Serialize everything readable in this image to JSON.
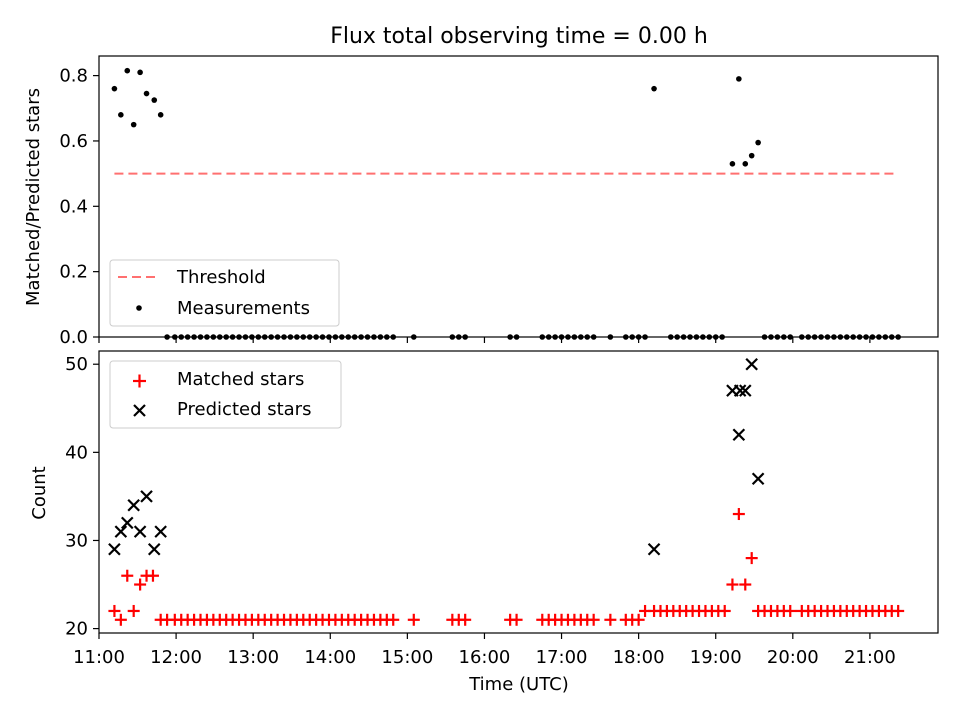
{
  "chart_data": [
    {
      "type": "scatter",
      "title": "Flux total observing time = 0.00 h",
      "xlabel": "",
      "ylabel": "Matched/Predicted stars",
      "xlim": [
        "11:00",
        "21:53"
      ],
      "ylim": [
        0,
        0.86
      ],
      "yticks": [
        "0.0",
        "0.2",
        "0.4",
        "0.6",
        "0.8"
      ],
      "grid": false,
      "legend_position": "lower-left",
      "threshold": {
        "name": "Threshold",
        "value": 0.5,
        "x_start": "11:12",
        "x_end": "21:22",
        "color": "#ff7070"
      },
      "series": [
        {
          "name": "Measurements",
          "color": "#000000",
          "points": [
            [
              "11:12",
              0.76
            ],
            [
              "11:17",
              0.68
            ],
            [
              "11:22",
              0.815
            ],
            [
              "11:27",
              0.65
            ],
            [
              "11:32",
              0.81
            ],
            [
              "11:37",
              0.745
            ],
            [
              "11:43",
              0.725
            ],
            [
              "11:48",
              0.68
            ],
            [
              "19:13",
              0.53
            ],
            [
              "19:18",
              0.79
            ],
            [
              "19:23",
              0.53
            ],
            [
              "19:28",
              0.555
            ],
            [
              "19:33",
              0.595
            ],
            [
              "18:12",
              0.76
            ],
            [
              "11:53",
              0
            ],
            [
              "11:59",
              0
            ],
            [
              "12:04",
              0
            ],
            [
              "12:09",
              0
            ],
            [
              "12:14",
              0
            ],
            [
              "12:19",
              0
            ],
            [
              "12:24",
              0
            ],
            [
              "12:29",
              0
            ],
            [
              "12:34",
              0
            ],
            [
              "12:39",
              0
            ],
            [
              "12:44",
              0
            ],
            [
              "12:49",
              0
            ],
            [
              "12:54",
              0
            ],
            [
              "12:59",
              0
            ],
            [
              "13:04",
              0
            ],
            [
              "13:09",
              0
            ],
            [
              "13:14",
              0
            ],
            [
              "13:19",
              0
            ],
            [
              "13:24",
              0
            ],
            [
              "13:29",
              0
            ],
            [
              "13:34",
              0
            ],
            [
              "13:39",
              0
            ],
            [
              "13:44",
              0
            ],
            [
              "13:49",
              0
            ],
            [
              "13:54",
              0
            ],
            [
              "13:59",
              0
            ],
            [
              "14:04",
              0
            ],
            [
              "14:09",
              0
            ],
            [
              "14:14",
              0
            ],
            [
              "14:19",
              0
            ],
            [
              "14:24",
              0
            ],
            [
              "14:29",
              0
            ],
            [
              "14:34",
              0
            ],
            [
              "14:39",
              0
            ],
            [
              "14:44",
              0
            ],
            [
              "14:49",
              0
            ],
            [
              "15:05",
              0
            ],
            [
              "15:35",
              0
            ],
            [
              "15:40",
              0
            ],
            [
              "15:45",
              0
            ],
            [
              "16:20",
              0
            ],
            [
              "16:25",
              0
            ],
            [
              "16:45",
              0
            ],
            [
              "16:50",
              0
            ],
            [
              "16:55",
              0
            ],
            [
              "17:00",
              0
            ],
            [
              "17:05",
              0
            ],
            [
              "17:10",
              0
            ],
            [
              "17:15",
              0
            ],
            [
              "17:20",
              0
            ],
            [
              "17:25",
              0
            ],
            [
              "17:38",
              0
            ],
            [
              "17:50",
              0
            ],
            [
              "17:55",
              0
            ],
            [
              "18:00",
              0
            ],
            [
              "18:05",
              0
            ],
            [
              "18:25",
              0
            ],
            [
              "18:30",
              0
            ],
            [
              "18:35",
              0
            ],
            [
              "18:40",
              0
            ],
            [
              "18:45",
              0
            ],
            [
              "18:50",
              0
            ],
            [
              "18:55",
              0
            ],
            [
              "19:00",
              0
            ],
            [
              "19:05",
              0
            ],
            [
              "19:38",
              0
            ],
            [
              "19:43",
              0
            ],
            [
              "19:48",
              0
            ],
            [
              "19:53",
              0
            ],
            [
              "19:58",
              0
            ],
            [
              "20:07",
              0
            ],
            [
              "20:12",
              0
            ],
            [
              "20:17",
              0
            ],
            [
              "20:22",
              0
            ],
            [
              "20:27",
              0
            ],
            [
              "20:32",
              0
            ],
            [
              "20:37",
              0
            ],
            [
              "20:42",
              0
            ],
            [
              "20:47",
              0
            ],
            [
              "20:52",
              0
            ],
            [
              "20:57",
              0
            ],
            [
              "21:02",
              0
            ],
            [
              "21:07",
              0
            ],
            [
              "21:12",
              0
            ],
            [
              "21:17",
              0
            ],
            [
              "21:22",
              0
            ]
          ]
        }
      ]
    },
    {
      "type": "scatter",
      "title": "",
      "xlabel": "Time (UTC)",
      "ylabel": "Count",
      "xlim": [
        "11:00",
        "21:53"
      ],
      "ylim": [
        19.5,
        51.5
      ],
      "xticks": [
        "11:00",
        "12:00",
        "13:00",
        "14:00",
        "15:00",
        "16:00",
        "17:00",
        "18:00",
        "19:00",
        "20:00",
        "21:00"
      ],
      "yticks": [
        "20",
        "30",
        "40",
        "50"
      ],
      "grid": false,
      "legend_position": "upper-left",
      "series": [
        {
          "name": "Matched stars",
          "marker": "plus",
          "color": "#ff0000",
          "points": [
            [
              "11:12",
              22
            ],
            [
              "11:17",
              21
            ],
            [
              "11:22",
              26
            ],
            [
              "11:27",
              22
            ],
            [
              "11:32",
              25
            ],
            [
              "11:37",
              26
            ],
            [
              "11:42",
              26
            ],
            [
              "11:48",
              21
            ],
            [
              "11:53",
              21
            ],
            [
              "11:59",
              21
            ],
            [
              "12:04",
              21
            ],
            [
              "12:09",
              21
            ],
            [
              "12:14",
              21
            ],
            [
              "12:19",
              21
            ],
            [
              "12:24",
              21
            ],
            [
              "12:29",
              21
            ],
            [
              "12:34",
              21
            ],
            [
              "12:39",
              21
            ],
            [
              "12:44",
              21
            ],
            [
              "12:49",
              21
            ],
            [
              "12:54",
              21
            ],
            [
              "12:59",
              21
            ],
            [
              "13:04",
              21
            ],
            [
              "13:09",
              21
            ],
            [
              "13:14",
              21
            ],
            [
              "13:19",
              21
            ],
            [
              "13:24",
              21
            ],
            [
              "13:29",
              21
            ],
            [
              "13:34",
              21
            ],
            [
              "13:39",
              21
            ],
            [
              "13:44",
              21
            ],
            [
              "13:49",
              21
            ],
            [
              "13:54",
              21
            ],
            [
              "13:59",
              21
            ],
            [
              "14:04",
              21
            ],
            [
              "14:09",
              21
            ],
            [
              "14:14",
              21
            ],
            [
              "14:19",
              21
            ],
            [
              "14:24",
              21
            ],
            [
              "14:29",
              21
            ],
            [
              "14:34",
              21
            ],
            [
              "14:39",
              21
            ],
            [
              "14:44",
              21
            ],
            [
              "14:49",
              21
            ],
            [
              "15:05",
              21
            ],
            [
              "15:35",
              21
            ],
            [
              "15:40",
              21
            ],
            [
              "15:45",
              21
            ],
            [
              "16:20",
              21
            ],
            [
              "16:25",
              21
            ],
            [
              "16:45",
              21
            ],
            [
              "16:50",
              21
            ],
            [
              "16:55",
              21
            ],
            [
              "17:00",
              21
            ],
            [
              "17:05",
              21
            ],
            [
              "17:10",
              21
            ],
            [
              "17:15",
              21
            ],
            [
              "17:20",
              21
            ],
            [
              "17:25",
              21
            ],
            [
              "17:38",
              21
            ],
            [
              "17:50",
              21
            ],
            [
              "17:55",
              21
            ],
            [
              "18:00",
              21
            ],
            [
              "18:05",
              22
            ],
            [
              "18:12",
              22
            ],
            [
              "18:17",
              22
            ],
            [
              "18:22",
              22
            ],
            [
              "18:27",
              22
            ],
            [
              "18:32",
              22
            ],
            [
              "18:37",
              22
            ],
            [
              "18:42",
              22
            ],
            [
              "18:47",
              22
            ],
            [
              "18:52",
              22
            ],
            [
              "18:57",
              22
            ],
            [
              "19:02",
              22
            ],
            [
              "19:07",
              22
            ],
            [
              "19:13",
              25
            ],
            [
              "19:18",
              33
            ],
            [
              "19:23",
              25
            ],
            [
              "19:28",
              28
            ],
            [
              "19:33",
              22
            ],
            [
              "19:38",
              22
            ],
            [
              "19:43",
              22
            ],
            [
              "19:48",
              22
            ],
            [
              "19:53",
              22
            ],
            [
              "19:58",
              22
            ],
            [
              "20:07",
              22
            ],
            [
              "20:12",
              22
            ],
            [
              "20:17",
              22
            ],
            [
              "20:22",
              22
            ],
            [
              "20:27",
              22
            ],
            [
              "20:32",
              22
            ],
            [
              "20:37",
              22
            ],
            [
              "20:42",
              22
            ],
            [
              "20:47",
              22
            ],
            [
              "20:52",
              22
            ],
            [
              "20:57",
              22
            ],
            [
              "21:02",
              22
            ],
            [
              "21:07",
              22
            ],
            [
              "21:12",
              22
            ],
            [
              "21:17",
              22
            ],
            [
              "21:22",
              22
            ]
          ]
        },
        {
          "name": "Predicted stars",
          "marker": "x",
          "color": "#000000",
          "points": [
            [
              "11:12",
              29
            ],
            [
              "11:17",
              31
            ],
            [
              "11:22",
              32
            ],
            [
              "11:27",
              34
            ],
            [
              "11:32",
              31
            ],
            [
              "11:37",
              35
            ],
            [
              "11:43",
              29
            ],
            [
              "11:48",
              31
            ],
            [
              "18:12",
              29
            ],
            [
              "19:13",
              47
            ],
            [
              "19:18",
              42
            ],
            [
              "19:19",
              47
            ],
            [
              "19:23",
              47
            ],
            [
              "19:28",
              50
            ],
            [
              "19:33",
              37
            ]
          ]
        }
      ]
    }
  ]
}
